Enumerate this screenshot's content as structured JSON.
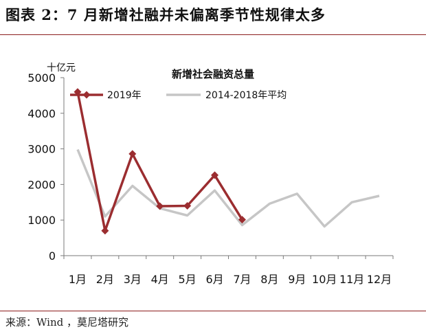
{
  "figure": {
    "title": "图表 2：7 月新增社融并未偏离季节性规律太多",
    "source": "来源：Wind ，莫尼塔研究"
  },
  "chart_data": {
    "type": "line",
    "title": "新增社会融资总量",
    "unit": "十亿元",
    "categories": [
      "1月",
      "2月",
      "3月",
      "4月",
      "5月",
      "6月",
      "7月",
      "8月",
      "9月",
      "10月",
      "11月",
      "12月"
    ],
    "ylim": [
      0,
      5000
    ],
    "yticks": [
      0,
      1000,
      2000,
      3000,
      4000,
      5000
    ],
    "legend_position": "top",
    "series": [
      {
        "name": "2019年",
        "color": "#9b2d30",
        "marker": "diamond",
        "values": [
          4600,
          700,
          2860,
          1390,
          1400,
          2260,
          1010,
          null,
          null,
          null,
          null,
          null
        ]
      },
      {
        "name": "2014-2018年平均",
        "color": "#c6c6c6",
        "marker": "none",
        "values": [
          2980,
          1100,
          1960,
          1330,
          1130,
          1830,
          860,
          1460,
          1740,
          820,
          1500,
          1680
        ]
      }
    ]
  }
}
